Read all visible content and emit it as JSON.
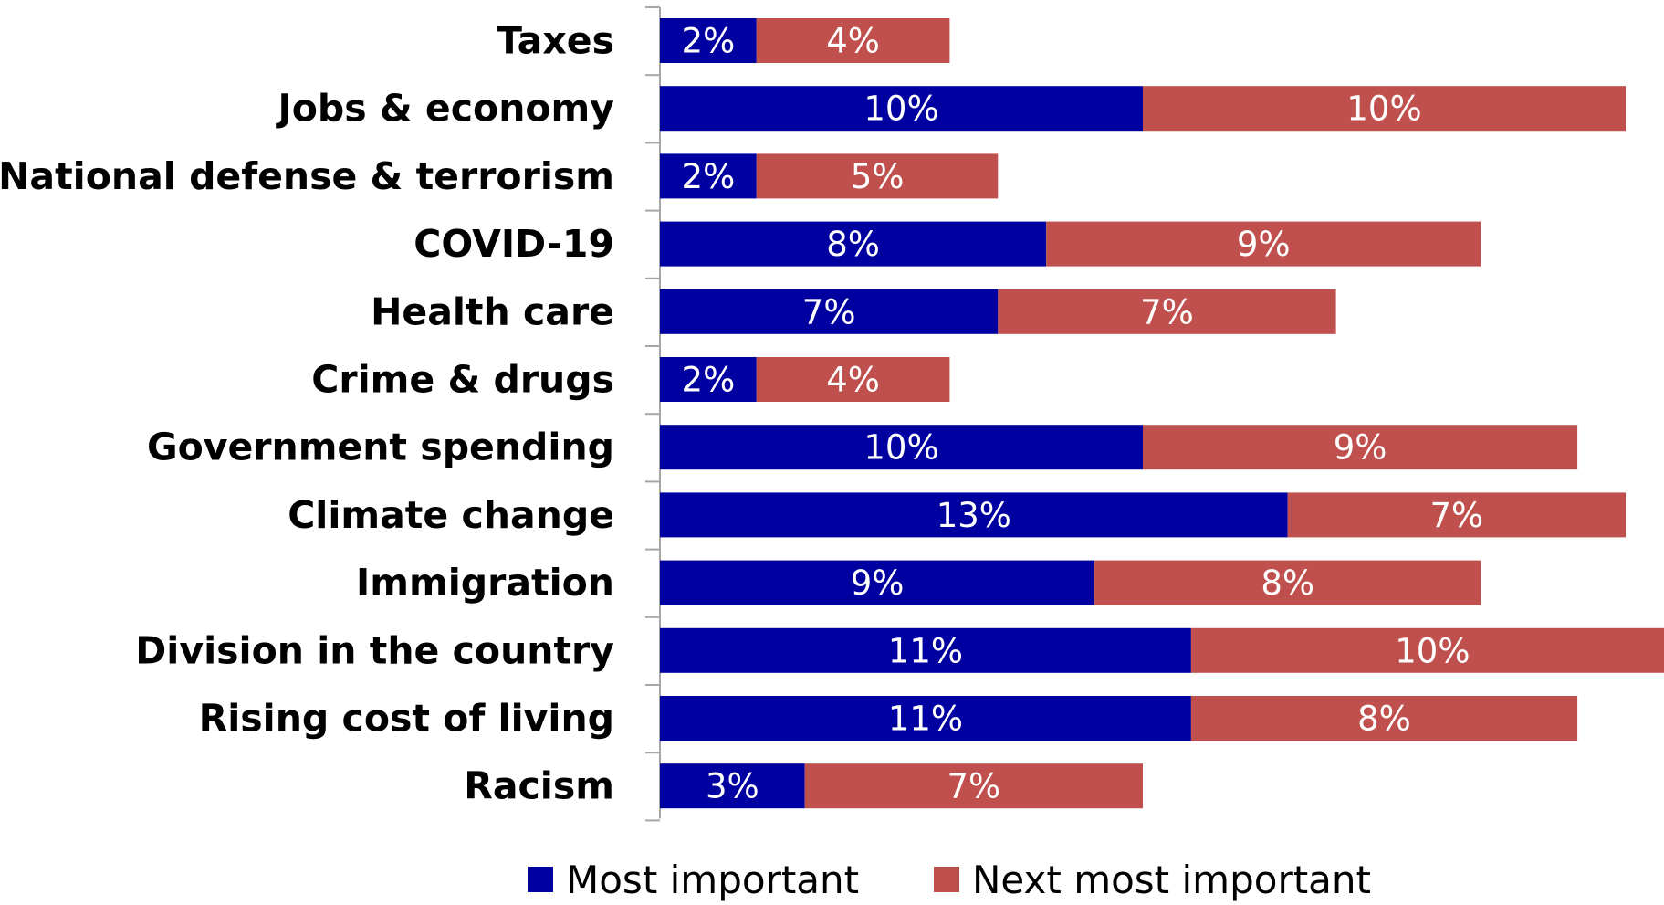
{
  "chart_data": {
    "type": "bar",
    "orientation": "horizontal",
    "stacked": true,
    "title": "",
    "xlabel": "",
    "ylabel": "",
    "categories": [
      "Taxes",
      "Jobs & economy",
      "National defense & terrorism",
      "COVID-19",
      "Health care",
      "Crime & drugs",
      "Government spending",
      "Climate change",
      "Immigration",
      "Division in the country",
      "Rising cost of living",
      "Racism"
    ],
    "series": [
      {
        "name": "Most important",
        "color": "#0000A0",
        "values": [
          2,
          10,
          2,
          8,
          7,
          2,
          10,
          13,
          9,
          11,
          11,
          3
        ],
        "labels": [
          "2%",
          "10%",
          "2%",
          "8%",
          "7%",
          "2%",
          "10%",
          "13%",
          "9%",
          "11%",
          "11%",
          "3%"
        ]
      },
      {
        "name": "Next most important",
        "color": "#C0504D",
        "values": [
          4,
          10,
          5,
          9,
          7,
          4,
          9,
          7,
          8,
          10,
          8,
          7
        ],
        "labels": [
          "4%",
          "10%",
          "5%",
          "9%",
          "7%",
          "4%",
          "9%",
          "7%",
          "8%",
          "10%",
          "8%",
          "7%"
        ]
      }
    ],
    "xlim": [
      0,
      21
    ],
    "grid": false,
    "legend_position": "bottom"
  }
}
